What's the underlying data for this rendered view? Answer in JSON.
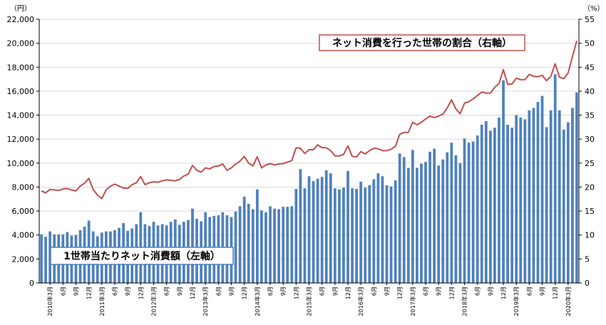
{
  "chart_data": {
    "type": "bar+line",
    "y_left_unit": "（円）",
    "y_right_unit": "（%）",
    "y_left_ticks": [
      "0",
      "2,000",
      "4,000",
      "6,000",
      "8,000",
      "10,000",
      "12,000",
      "14,000",
      "16,000",
      "18,000",
      "20,000",
      "22,000"
    ],
    "y_right_ticks": [
      "0",
      "5",
      "10",
      "15",
      "20",
      "25",
      "30",
      "35",
      "40",
      "45",
      "50",
      "55"
    ],
    "ylim_left": [
      0,
      22000
    ],
    "ylim_right": [
      0,
      55
    ],
    "x_tick_labels": [
      {
        "i": 2,
        "label": "2010年3月"
      },
      {
        "i": 5,
        "label": "6月"
      },
      {
        "i": 8,
        "label": "9月"
      },
      {
        "i": 11,
        "label": "12月"
      },
      {
        "i": 14,
        "label": "2011年3月"
      },
      {
        "i": 17,
        "label": "6月"
      },
      {
        "i": 20,
        "label": "9月"
      },
      {
        "i": 23,
        "label": "12月"
      },
      {
        "i": 26,
        "label": "2012年3月"
      },
      {
        "i": 29,
        "label": "6月"
      },
      {
        "i": 32,
        "label": "9月"
      },
      {
        "i": 35,
        "label": "12月"
      },
      {
        "i": 38,
        "label": "2013年3月"
      },
      {
        "i": 41,
        "label": "6月"
      },
      {
        "i": 44,
        "label": "9月"
      },
      {
        "i": 47,
        "label": "12月"
      },
      {
        "i": 50,
        "label": "2014年3月"
      },
      {
        "i": 53,
        "label": "6月"
      },
      {
        "i": 56,
        "label": "9月"
      },
      {
        "i": 59,
        "label": "12月"
      },
      {
        "i": 62,
        "label": "2015年3月"
      },
      {
        "i": 65,
        "label": "6月"
      },
      {
        "i": 68,
        "label": "9月"
      },
      {
        "i": 71,
        "label": "12月"
      },
      {
        "i": 74,
        "label": "2016年3月"
      },
      {
        "i": 77,
        "label": "6月"
      },
      {
        "i": 80,
        "label": "9月"
      },
      {
        "i": 83,
        "label": "12月"
      },
      {
        "i": 86,
        "label": "2017年3月"
      },
      {
        "i": 89,
        "label": "6月"
      },
      {
        "i": 92,
        "label": "9月"
      },
      {
        "i": 95,
        "label": "12月"
      },
      {
        "i": 98,
        "label": "2018年3月"
      },
      {
        "i": 101,
        "label": "6月"
      },
      {
        "i": 104,
        "label": "9月"
      },
      {
        "i": 107,
        "label": "12月"
      },
      {
        "i": 110,
        "label": "2019年3月"
      },
      {
        "i": 113,
        "label": "6月"
      },
      {
        "i": 116,
        "label": "9月"
      },
      {
        "i": 119,
        "label": "12月"
      },
      {
        "i": 122,
        "label": "2020年3月"
      }
    ],
    "series": [
      {
        "name": "1世帯当たりネット消費額（左軸）",
        "type": "bar",
        "axis": "left",
        "color": "#4f81bd",
        "values": [
          4050,
          3850,
          4300,
          4050,
          4050,
          4050,
          4250,
          3950,
          4000,
          4400,
          4700,
          5200,
          4300,
          3900,
          4200,
          4300,
          4300,
          4400,
          4600,
          5000,
          4350,
          4550,
          4900,
          5900,
          4900,
          4750,
          5100,
          4800,
          4900,
          4800,
          5100,
          5300,
          4850,
          5100,
          5250,
          6200,
          5350,
          5150,
          5900,
          5500,
          5600,
          5650,
          5900,
          5650,
          5500,
          5950,
          6400,
          7200,
          6600,
          6150,
          7800,
          6050,
          5900,
          6400,
          6200,
          6150,
          6350,
          6350,
          6400,
          7850,
          9500,
          7900,
          8900,
          8500,
          8700,
          8850,
          9400,
          9150,
          7900,
          7800,
          7950,
          9350,
          7900,
          7850,
          8450,
          7950,
          8150,
          8650,
          9150,
          8900,
          8150,
          8050,
          8550,
          10800,
          10500,
          9600,
          11100,
          9600,
          9950,
          10100,
          10950,
          11200,
          9800,
          10300,
          10900,
          11700,
          10650,
          10000,
          12050,
          11700,
          11800,
          12300,
          13200,
          13500,
          12700,
          12950,
          13800,
          16900,
          13200,
          12950,
          14000,
          13800,
          13650,
          14400,
          14600,
          15100,
          15600,
          13000,
          14400,
          17400,
          14400,
          12800,
          13400,
          14600,
          15900
        ]
      },
      {
        "name": "ネット消費を行った世帯の割合（右軸）",
        "type": "line",
        "axis": "right",
        "color": "#c0504d",
        "values": [
          19.2,
          18.8,
          19.5,
          19.4,
          19.3,
          19.6,
          19.7,
          19.4,
          19.2,
          20.2,
          20.8,
          21.8,
          19.5,
          18.3,
          17.6,
          19.4,
          20.2,
          20.6,
          20.2,
          19.8,
          19.7,
          20.5,
          20.9,
          22.2,
          20.5,
          20.9,
          21.1,
          21.0,
          21.3,
          21.5,
          21.4,
          21.3,
          21.6,
          22.3,
          22.7,
          24.5,
          23.5,
          23.1,
          24.0,
          23.8,
          24.3,
          24.4,
          24.8,
          23.5,
          24.0,
          24.8,
          25.4,
          26.4,
          25.0,
          24.4,
          26.3,
          24.0,
          24.6,
          24.9,
          24.6,
          24.8,
          24.9,
          25.2,
          25.5,
          28.2,
          28.1,
          27.0,
          27.8,
          27.8,
          28.8,
          28.2,
          28.2,
          27.6,
          26.5,
          26.5,
          26.8,
          28.6,
          26.4,
          26.3,
          27.4,
          26.9,
          27.6,
          28.1,
          28.0,
          27.6,
          27.6,
          27.9,
          28.5,
          31.0,
          31.4,
          31.4,
          33.5,
          33.0,
          33.5,
          34.2,
          34.8,
          34.5,
          34.8,
          35.2,
          36.5,
          38.2,
          36.3,
          35.3,
          37.5,
          37.8,
          38.4,
          39.1,
          39.8,
          39.6,
          39.6,
          40.8,
          41.6,
          44.5,
          41.4,
          41.5,
          42.7,
          42.4,
          42.4,
          43.5,
          43.1,
          43.0,
          43.3,
          42.2,
          43.1,
          45.7,
          42.9,
          42.6,
          43.8,
          47.2,
          50.5
        ]
      }
    ]
  },
  "legend_labels": {
    "line": "ネット消費を行った世帯の割合（右軸）",
    "bar": "1世帯当たりネット消費額（左軸）"
  }
}
